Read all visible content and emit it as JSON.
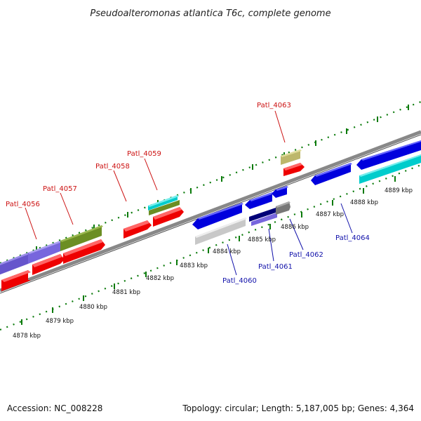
{
  "title": "Pseudoalteromonas atlantica T6c, complete genome",
  "footer": {
    "accession": "Accession: NC_008228",
    "topology": "Topology: circular; Length: 5,187,005 bp; Genes: 4,364"
  },
  "kbp_ticks": [
    "4878 kbp",
    "4879 kbp",
    "4880 kbp",
    "4881 kbp",
    "4882 kbp",
    "4883 kbp",
    "4884 kbp",
    "4885 kbp",
    "4886 kbp",
    "4887 kbp",
    "4888 kbp",
    "4889 kbp"
  ],
  "gene_labels_forward": [
    "Patl_4056",
    "Patl_4057",
    "Patl_4058",
    "Patl_4059",
    "Patl_4063"
  ],
  "gene_labels_reverse": [
    "Patl_4060",
    "Patl_4061",
    "Patl_4062",
    "Patl_4064"
  ],
  "colors": {
    "forward_label": "#cc1111",
    "reverse_label": "#1111aa",
    "red_gene": "#ee0000",
    "blue_gene": "#0000dd",
    "purple_gene": "#7766dd",
    "olive_gene": "#6b8e23",
    "cyan_gene": "#00cccc",
    "khaki_gene": "#bdb76b",
    "gray_gene": "#c8c8c8",
    "dark_gray_gene": "#777777",
    "backbone": "#888888",
    "tick_green": "#0a7a0a"
  }
}
